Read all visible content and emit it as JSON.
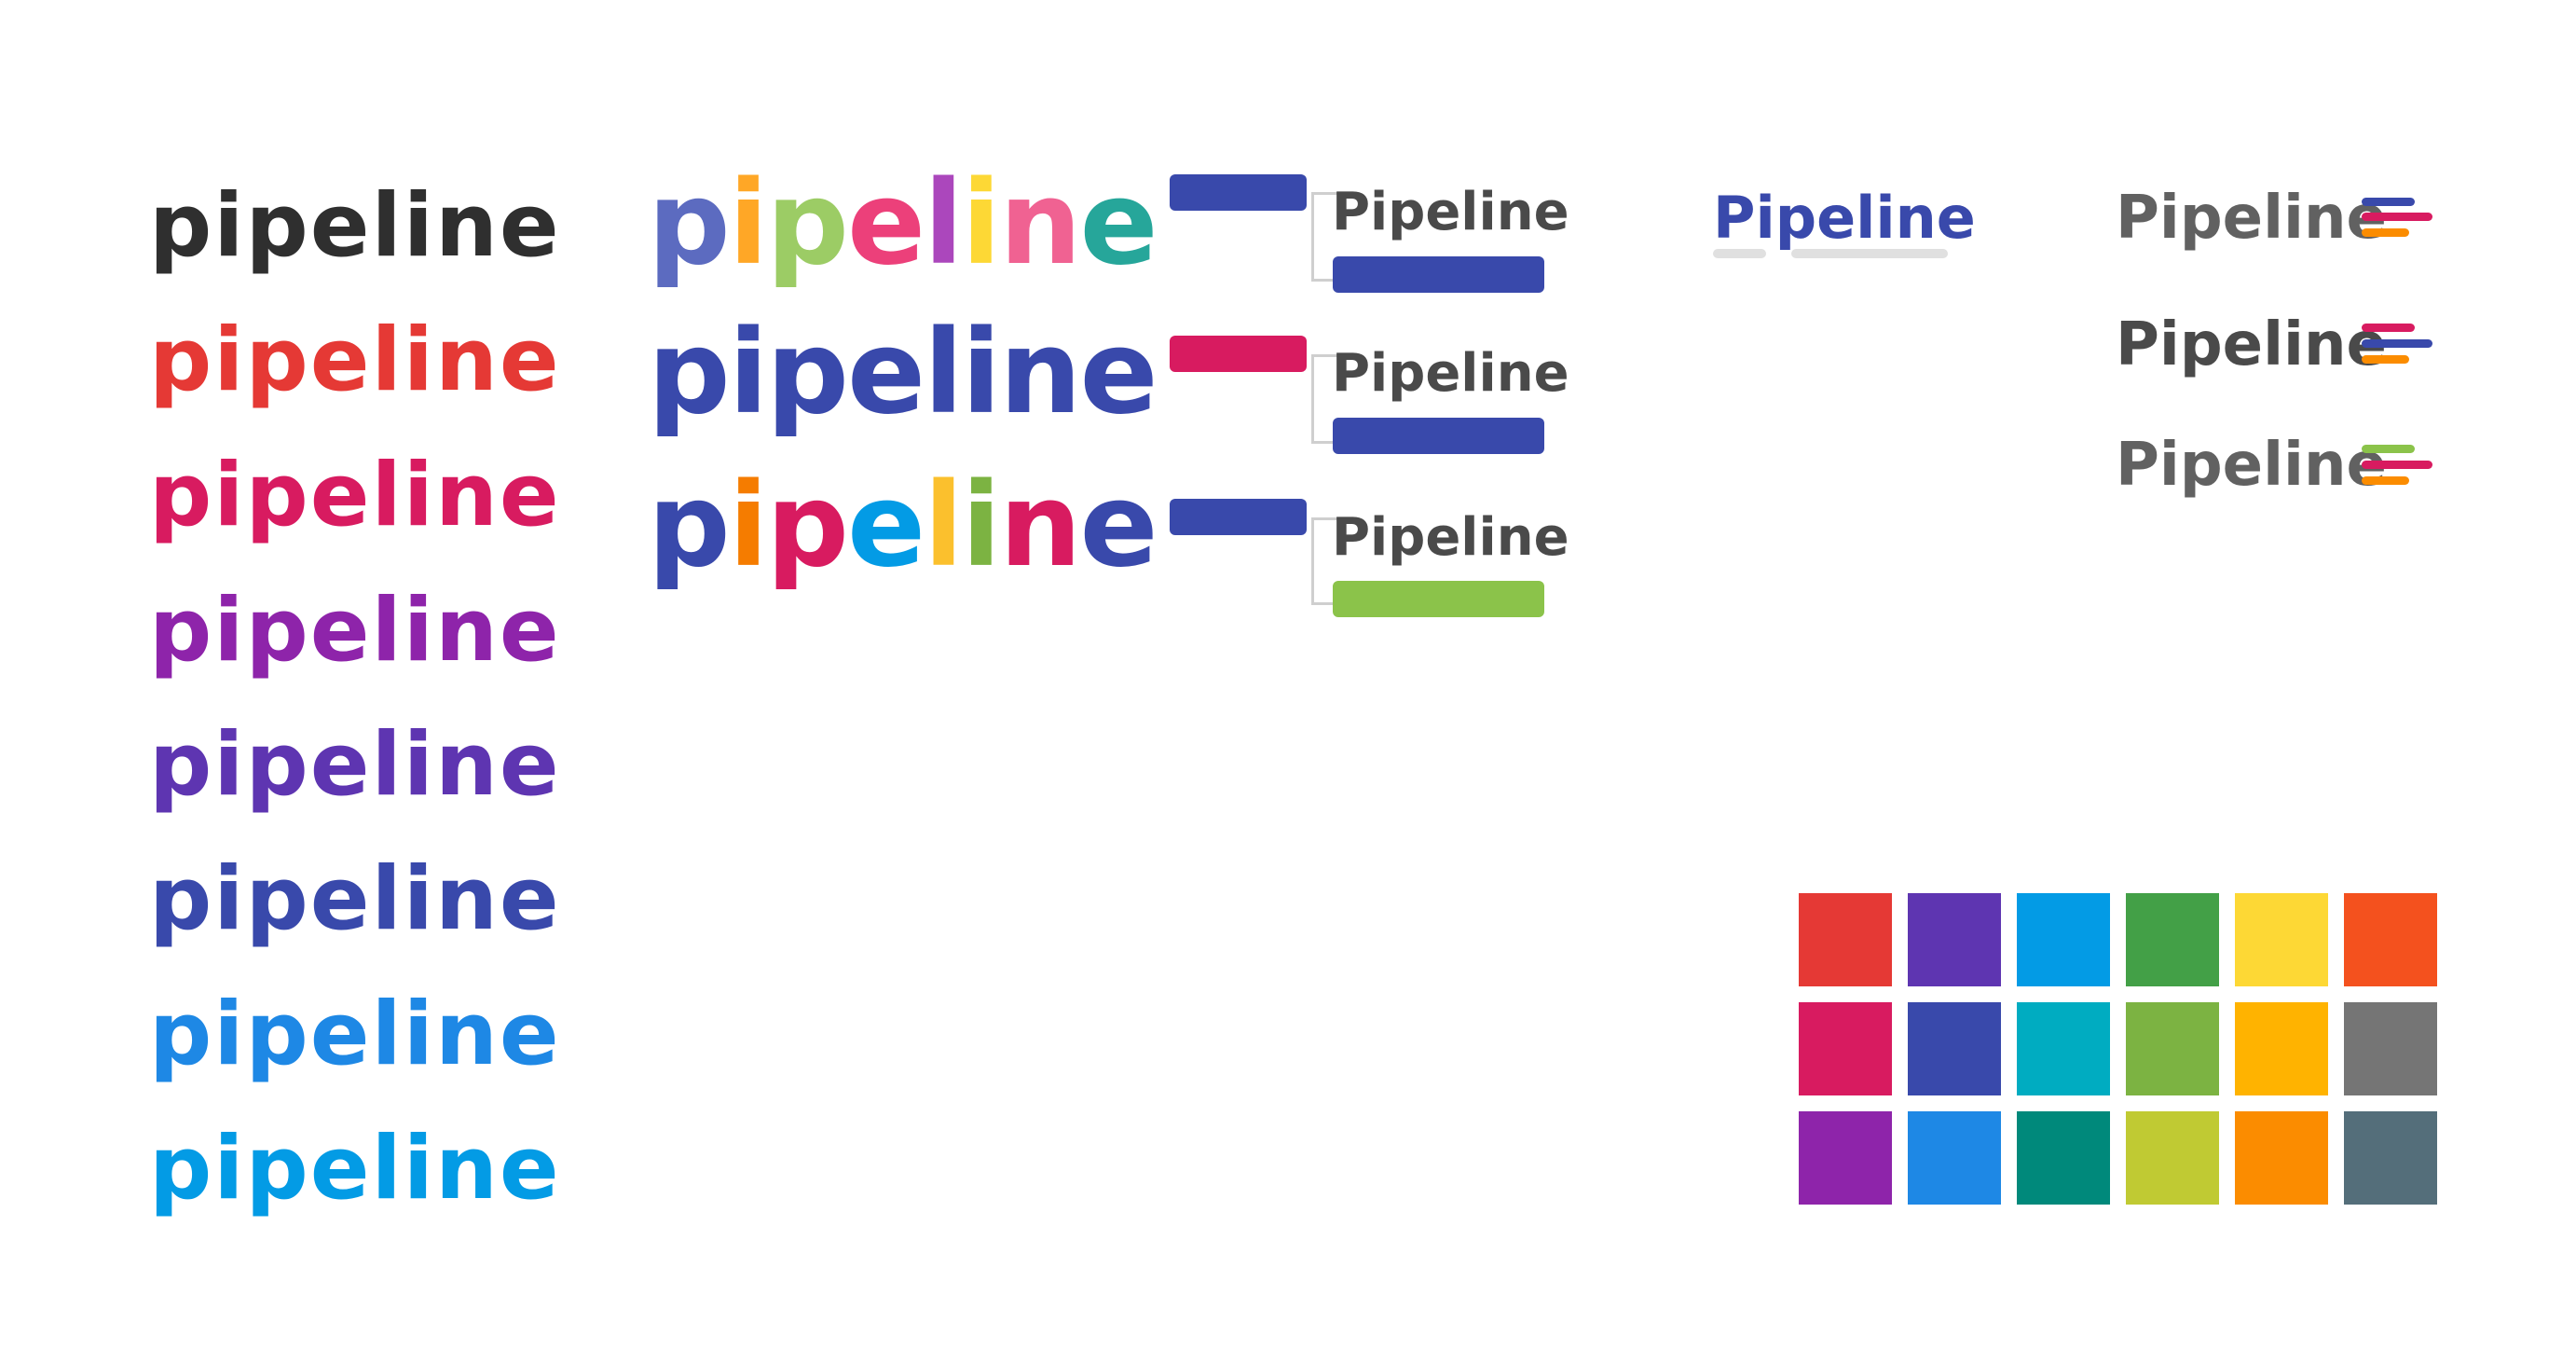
{
  "brand_word": "pipeline",
  "brand_word_caps": "Pipeline",
  "column1": [
    {
      "text": "pipeline",
      "color": "#2f2f2f"
    },
    {
      "text": "pipeline",
      "color": "#e53935"
    },
    {
      "text": "pipeline",
      "color": "#d81b60"
    },
    {
      "text": "pipeline",
      "color": "#8e24aa"
    },
    {
      "text": "pipeline",
      "color": "#5e35b1"
    },
    {
      "text": "pipeline",
      "color": "#3949ab"
    },
    {
      "text": "pipeline",
      "color": "#1e88e5"
    },
    {
      "text": "pipeline",
      "color": "#039be5"
    }
  ],
  "column2": [
    {
      "letters": [
        {
          "char": "p",
          "color": "#5c6bc0"
        },
        {
          "char": "i",
          "color": "#ffa726"
        },
        {
          "char": "p",
          "color": "#9ccc65"
        },
        {
          "char": "e",
          "color": "#ec407a"
        },
        {
          "char": "l",
          "color": "#ab47bc"
        },
        {
          "char": "i",
          "color": "#fdd835"
        },
        {
          "char": "n",
          "color": "#f06292"
        },
        {
          "char": "e",
          "color": "#26a69a"
        }
      ]
    },
    {
      "letters": [
        {
          "char": "p",
          "color": "#3949ab"
        },
        {
          "char": "i",
          "color": "#3949ab"
        },
        {
          "char": "p",
          "color": "#3949ab"
        },
        {
          "char": "e",
          "color": "#3949ab"
        },
        {
          "char": "l",
          "color": "#3949ab"
        },
        {
          "char": "i",
          "color": "#3949ab"
        },
        {
          "char": "n",
          "color": "#3949ab"
        },
        {
          "char": "e",
          "color": "#3949ab"
        }
      ]
    },
    {
      "letters": [
        {
          "char": "p",
          "color": "#3949ab"
        },
        {
          "char": "i",
          "color": "#f57c00"
        },
        {
          "char": "p",
          "color": "#d81b60"
        },
        {
          "char": "e",
          "color": "#039be5"
        },
        {
          "char": "l",
          "color": "#fbc02d"
        },
        {
          "char": "i",
          "color": "#7cb342"
        },
        {
          "char": "n",
          "color": "#d81b60"
        },
        {
          "char": "e",
          "color": "#3949ab"
        }
      ]
    }
  ],
  "column3": [
    {
      "text": "Pipeline",
      "top_bar_color": "#3949ab",
      "bottom_bar_color": "#3949ab"
    },
    {
      "text": "Pipeline",
      "top_bar_color": "#d81b60",
      "bottom_bar_color": "#3949ab"
    },
    {
      "text": "Pipeline",
      "top_bar_color": "#3949ab",
      "bottom_bar_color": "#8bc34a"
    }
  ],
  "column4": {
    "text": "Pipeline",
    "color": "#3949ab"
  },
  "column5": [
    {
      "text": "Pipeline",
      "color": "#616161",
      "stripes": [
        "#3949ab",
        "#d81b60",
        "#fb8c00"
      ]
    },
    {
      "text": "Pipeline",
      "color": "#4a4a4a",
      "stripes": [
        "#d81b60",
        "#3949ab",
        "#fb8c00"
      ]
    },
    {
      "text": "Pipeline",
      "color": "#616161",
      "stripes": [
        "#8bc34a",
        "#d81b60",
        "#fb8c00"
      ]
    }
  ],
  "palette": [
    [
      "#e53935",
      "#5e35b1",
      "#039be5",
      "#43a047",
      "#fdd835",
      "#f4511e"
    ],
    [
      "#d81b60",
      "#3949ab",
      "#00acc1",
      "#7cb342",
      "#ffb300",
      "#757575"
    ],
    [
      "#8e24aa",
      "#1e88e5",
      "#00897b",
      "#c0ca33",
      "#fb8c00",
      "#546e7a"
    ]
  ]
}
